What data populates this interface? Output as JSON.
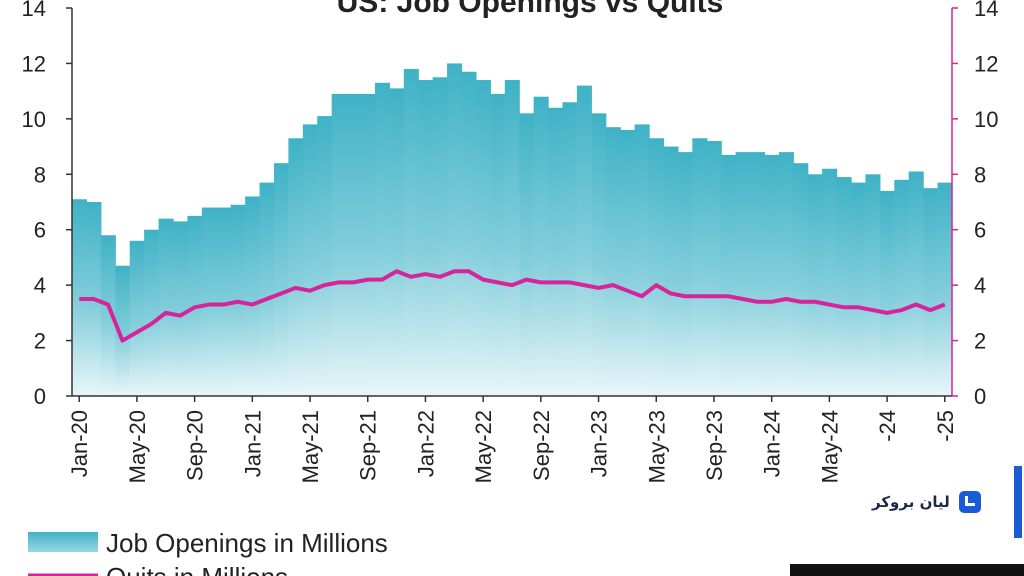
{
  "chart_data": {
    "type": "bar",
    "title": "US: Job Openings vs Quits",
    "y_left_ticks": [
      "0",
      "2",
      "4",
      "6",
      "8",
      "10",
      "12",
      "14"
    ],
    "y_right_ticks": [
      "0",
      "2",
      "4",
      "6",
      "8",
      "10",
      "12",
      "14"
    ],
    "ylim": [
      0,
      14
    ],
    "x_ticks": [
      "Jan-20",
      "May-20",
      "Sep-20",
      "Jan-21",
      "May-21",
      "Sep-21",
      "Jan-22",
      "May-22",
      "Sep-22",
      "Jan-23",
      "May-23",
      "Sep-23",
      "Jan-24",
      "May-24",
      "-24",
      "-25"
    ],
    "grid": false,
    "legend_position": "bottom-left",
    "series": [
      {
        "name": "Job Openings in Millions",
        "type": "bar",
        "color": "#45b6c8",
        "values": [
          7.1,
          7.0,
          5.8,
          4.7,
          5.6,
          6.0,
          6.4,
          6.3,
          6.5,
          6.8,
          6.8,
          6.9,
          7.2,
          7.7,
          8.4,
          9.3,
          9.8,
          10.1,
          10.9,
          10.9,
          10.9,
          11.3,
          11.1,
          11.8,
          11.4,
          11.5,
          12.0,
          11.7,
          11.4,
          10.9,
          11.4,
          10.2,
          10.8,
          10.4,
          10.6,
          11.2,
          10.2,
          9.7,
          9.6,
          9.8,
          9.3,
          9.0,
          8.8,
          9.3,
          9.2,
          8.7,
          8.8,
          8.8,
          8.7,
          8.8,
          8.4,
          8.0,
          8.2,
          7.9,
          7.7,
          8.0,
          7.4,
          7.8,
          8.1,
          7.5,
          7.7
        ]
      },
      {
        "name": "Quits in Millions",
        "type": "line",
        "color": "#d6259a",
        "values": [
          3.5,
          3.5,
          3.3,
          2.0,
          2.3,
          2.6,
          3.0,
          2.9,
          3.2,
          3.3,
          3.3,
          3.4,
          3.3,
          3.5,
          3.7,
          3.9,
          3.8,
          4.0,
          4.1,
          4.1,
          4.2,
          4.2,
          4.5,
          4.3,
          4.4,
          4.3,
          4.5,
          4.5,
          4.2,
          4.1,
          4.0,
          4.2,
          4.1,
          4.1,
          4.1,
          4.0,
          3.9,
          4.0,
          3.8,
          3.6,
          4.0,
          3.7,
          3.6,
          3.6,
          3.6,
          3.6,
          3.5,
          3.4,
          3.4,
          3.5,
          3.4,
          3.4,
          3.3,
          3.2,
          3.2,
          3.1,
          3.0,
          3.1,
          3.3,
          3.1,
          3.3
        ]
      }
    ]
  },
  "legend": {
    "openings_label": "Job Openings in Millions",
    "quits_label": "Quits in Millions"
  },
  "brand": {
    "name": "لیان بروکر"
  }
}
